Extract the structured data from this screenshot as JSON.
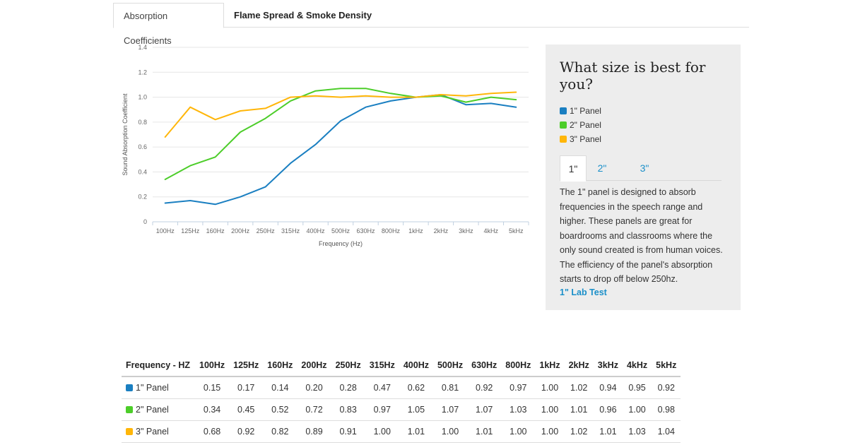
{
  "tabs": [
    {
      "label": "Absorption Coefficients",
      "active": true
    },
    {
      "label": "Flame Spread & Smoke Density",
      "active": false
    }
  ],
  "chart_data": {
    "type": "line",
    "xlabel": "Frequency (Hz)",
    "ylabel": "Sound Absorption Coefficient",
    "ylim": [
      0,
      1.4
    ],
    "yticks": [
      "0",
      "0.2",
      "0.4",
      "0.6",
      "0.8",
      "1.0",
      "1.2",
      "1.4"
    ],
    "yticks_values": [
      0,
      0.2,
      0.4,
      0.6,
      0.8,
      1.0,
      1.2,
      1.4
    ],
    "categories": [
      "100Hz",
      "125Hz",
      "160Hz",
      "200Hz",
      "250Hz",
      "315Hz",
      "400Hz",
      "500Hz",
      "630Hz",
      "800Hz",
      "1kHz",
      "2kHz",
      "3kHz",
      "4kHz",
      "5kHz"
    ],
    "grid": true,
    "series": [
      {
        "name": "1\" Panel",
        "color": "#1a7fc1",
        "values": [
          0.15,
          0.17,
          0.14,
          0.2,
          0.28,
          0.47,
          0.62,
          0.81,
          0.92,
          0.97,
          1.0,
          1.02,
          0.94,
          0.95,
          0.92
        ]
      },
      {
        "name": "2\" Panel",
        "color": "#4ccd29",
        "values": [
          0.34,
          0.45,
          0.52,
          0.72,
          0.83,
          0.97,
          1.05,
          1.07,
          1.07,
          1.03,
          1.0,
          1.01,
          0.96,
          1.0,
          0.98
        ]
      },
      {
        "name": "3\" Panel",
        "color": "#ffb609",
        "values": [
          0.68,
          0.92,
          0.82,
          0.89,
          0.91,
          1.0,
          1.01,
          1.0,
          1.01,
          1.0,
          1.0,
          1.02,
          1.01,
          1.03,
          1.04
        ]
      }
    ]
  },
  "side": {
    "title": "What size is best for you?",
    "legend": [
      {
        "label": "1\" Panel",
        "color": "#1a7fc1"
      },
      {
        "label": "2\" Panel",
        "color": "#4ccd29"
      },
      {
        "label": "3\" Panel",
        "color": "#ffb609"
      }
    ],
    "size_tabs": [
      "1\"",
      "2\"",
      "3\""
    ],
    "description": "The 1\" panel is designed to absorb frequencies in the speech range and higher. These panels are great for boardrooms and classrooms where the only sound created is from human voices. The efficiency of the panel's absorption starts to drop off below 250hz.",
    "link": "1\" Lab Test"
  },
  "table": {
    "header_first": "Frequency - HZ",
    "headers": [
      "100Hz",
      "125Hz",
      "160Hz",
      "200Hz",
      "250Hz",
      "315Hz",
      "400Hz",
      "500Hz",
      "630Hz",
      "800Hz",
      "1kHz",
      "2kHz",
      "3kHz",
      "4kHz",
      "5kHz"
    ],
    "rows": [
      {
        "label": "1\" Panel",
        "color": "#1a7fc1",
        "values": [
          "0.15",
          "0.17",
          "0.14",
          "0.20",
          "0.28",
          "0.47",
          "0.62",
          "0.81",
          "0.92",
          "0.97",
          "1.00",
          "1.02",
          "0.94",
          "0.95",
          "0.92"
        ]
      },
      {
        "label": "2\" Panel",
        "color": "#4ccd29",
        "values": [
          "0.34",
          "0.45",
          "0.52",
          "0.72",
          "0.83",
          "0.97",
          "1.05",
          "1.07",
          "1.07",
          "1.03",
          "1.00",
          "1.01",
          "0.96",
          "1.00",
          "0.98"
        ]
      },
      {
        "label": "3\" Panel",
        "color": "#ffb609",
        "values": [
          "0.68",
          "0.92",
          "0.82",
          "0.89",
          "0.91",
          "1.00",
          "1.01",
          "1.00",
          "1.01",
          "1.00",
          "1.00",
          "1.02",
          "1.01",
          "1.03",
          "1.04"
        ]
      }
    ]
  }
}
